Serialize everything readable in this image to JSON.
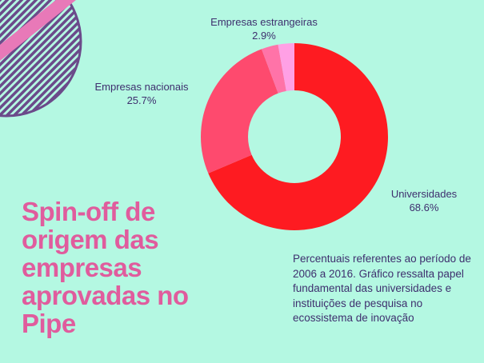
{
  "chart_data": {
    "type": "pie",
    "categories": [
      "Universidades",
      "Empresas nacionais",
      "Empresas estrangeiras"
    ],
    "values": [
      68.6,
      25.7,
      2.9
    ],
    "value_labels": [
      "68.6%",
      "25.7%",
      "2.9%"
    ],
    "colors": [
      "#fe1b21",
      "#fe4a6e",
      "#ff73a8"
    ],
    "extra_slice_color": "#ffa0e5",
    "donut": true
  },
  "title": "Spin-off de origem das empresas aprovadas no Pipe",
  "note": "Percentuais referentes ao período de 2006 a 2016. Gráfico ressalta papel fundamental das universidades e instituições de pesquisa no ecossistema de inovação",
  "colors": {
    "background": "#b4f8e2",
    "title": "#e05c9d",
    "text": "#3e2f6e",
    "deco_stripe": "#6b4a8a",
    "deco_pink": "#e879b8"
  }
}
